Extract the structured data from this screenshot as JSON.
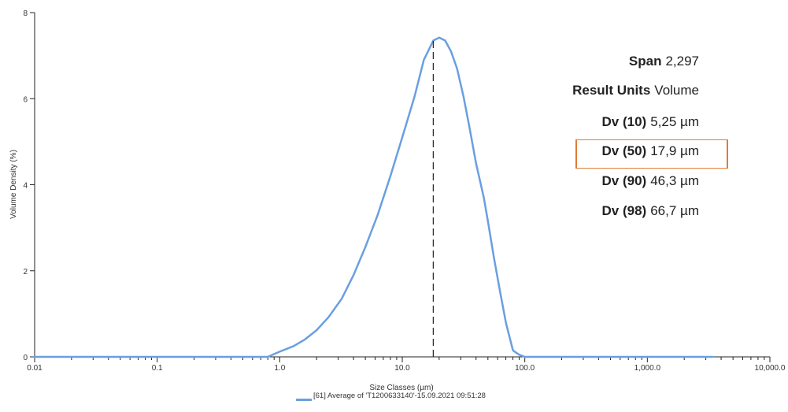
{
  "chart_data": {
    "type": "line",
    "xscale": "log",
    "xlabel": "Size Classes (µm)",
    "ylabel": "Volume Density (%)",
    "xlim": [
      0.01,
      10000
    ],
    "ylim": [
      0,
      8
    ],
    "xticks": [
      "0.01",
      "0.1",
      "1.0",
      "10.0",
      "100.0",
      "1,000.0",
      "10,000.0"
    ],
    "yticks": [
      "0",
      "2",
      "4",
      "6",
      "8"
    ],
    "series": [
      {
        "name": "[61] Average of 'T1200633140'-15.09.2021 09:51:28",
        "color": "#6a9fe0",
        "x": [
          0.01,
          0.8,
          1.0,
          1.3,
          1.6,
          2.0,
          2.5,
          3.2,
          4.0,
          5.0,
          6.3,
          8.0,
          10.0,
          12.6,
          15.0,
          17.9,
          20.0,
          22.4,
          25.0,
          28.0,
          31.6,
          35.5,
          40.0,
          46.3,
          50.0,
          56.0,
          63.0,
          70.0,
          80.0,
          90.0,
          100.0,
          3400.0
        ],
        "y": [
          0.0,
          0.0,
          0.12,
          0.25,
          0.4,
          0.62,
          0.92,
          1.35,
          1.9,
          2.55,
          3.3,
          4.2,
          5.1,
          6.05,
          6.9,
          7.35,
          7.42,
          7.35,
          7.1,
          6.7,
          6.05,
          5.3,
          4.5,
          3.7,
          3.15,
          2.3,
          1.5,
          0.8,
          0.15,
          0.05,
          0.0,
          0.0
        ]
      }
    ],
    "marker_line_x": 17.9,
    "stats": [
      {
        "label": "Span",
        "value": "2,297"
      },
      {
        "label": "Result Units",
        "value": "Volume"
      },
      {
        "label": "Dv (10)",
        "value": "5,25 µm"
      },
      {
        "label": "Dv (50)",
        "value": "17,9 µm"
      },
      {
        "label": "Dv (90)",
        "value": "46,3 µm"
      },
      {
        "label": "Dv (98)",
        "value": "66,7 µm"
      }
    ],
    "highlight_stat": "Dv (50)",
    "highlight_color": "#e07b39"
  }
}
